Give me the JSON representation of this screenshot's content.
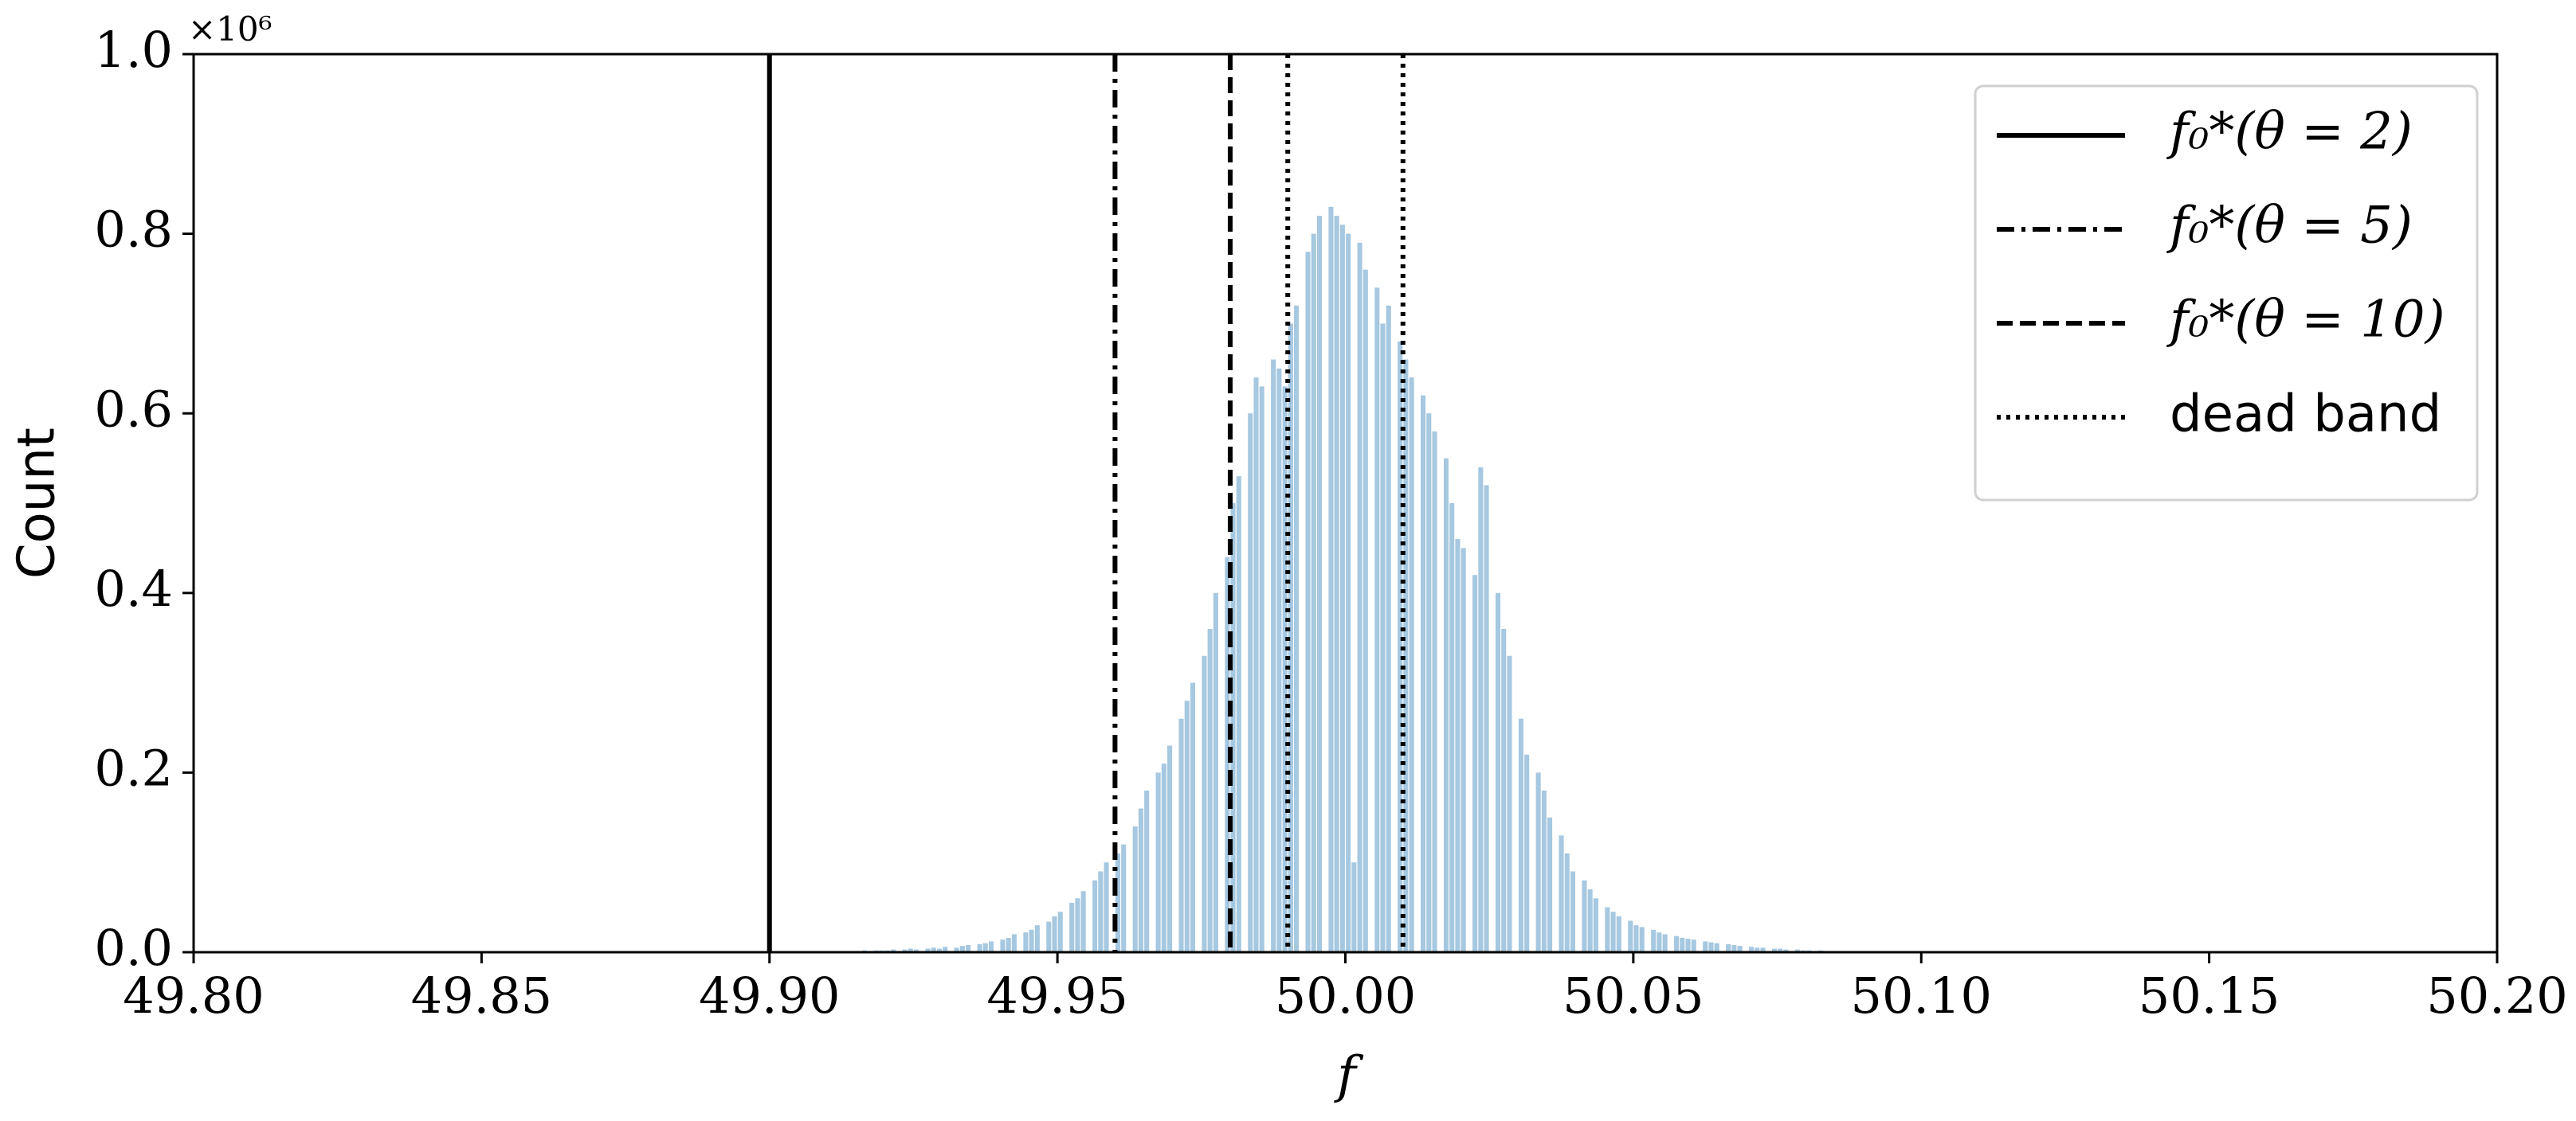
{
  "chart_data": {
    "type": "histogram",
    "xlabel": "f",
    "ylabel": "Count",
    "y_multiplier": "×10⁶",
    "color": "#a6c8e0",
    "xlim": [
      49.8,
      50.2
    ],
    "ylim": [
      0,
      1.0
    ],
    "xticks": [
      {
        "value": 49.8,
        "label": "49.80"
      },
      {
        "value": 49.85,
        "label": "49.85"
      },
      {
        "value": 49.9,
        "label": "49.90"
      },
      {
        "value": 49.95,
        "label": "49.95"
      },
      {
        "value": 50.0,
        "label": "50.00"
      },
      {
        "value": 50.05,
        "label": "50.05"
      },
      {
        "value": 50.1,
        "label": "50.10"
      },
      {
        "value": 50.15,
        "label": "50.15"
      },
      {
        "value": 50.2,
        "label": "50.20"
      }
    ],
    "yticks": [
      {
        "value": 0,
        "label": "0.0"
      },
      0.2,
      0.4,
      0.6,
      0.8,
      {
        "value": 1.0,
        "label": "1.0"
      }
    ],
    "bins": [
      49.91,
      49.911,
      49.912,
      49.913,
      49.914,
      49.915,
      49.916,
      49.917,
      49.918,
      49.919,
      49.92,
      49.921,
      49.922,
      49.923,
      49.924,
      49.925,
      49.926,
      49.927,
      49.928,
      49.929,
      49.93,
      49.931,
      49.932,
      49.933,
      49.934,
      49.935,
      49.936,
      49.937,
      49.938,
      49.939,
      49.94,
      49.941,
      49.942,
      49.943,
      49.944,
      49.945,
      49.946,
      49.947,
      49.948,
      49.949,
      49.95,
      49.951,
      49.952,
      49.953,
      49.954,
      49.955,
      49.956,
      49.957,
      49.958,
      49.959,
      49.96,
      49.961,
      49.962,
      49.963,
      49.964,
      49.965,
      49.966,
      49.967,
      49.968,
      49.969,
      49.97,
      49.971,
      49.972,
      49.973,
      49.974,
      49.975,
      49.976,
      49.977,
      49.978,
      49.979,
      49.98,
      49.981,
      49.982,
      49.983,
      49.984,
      49.985,
      49.986,
      49.987,
      49.988,
      49.989,
      49.99,
      49.991,
      49.992,
      49.993,
      49.994,
      49.995,
      49.996,
      49.997,
      49.998,
      49.999,
      50.0,
      50.001,
      50.002,
      50.003,
      50.004,
      50.005,
      50.006,
      50.007,
      50.008,
      50.009,
      50.01,
      50.011,
      50.012,
      50.013,
      50.014,
      50.015,
      50.016,
      50.017,
      50.018,
      50.019,
      50.02,
      50.021,
      50.022,
      50.023,
      50.024,
      50.025,
      50.026,
      50.027,
      50.028,
      50.029,
      50.03,
      50.031,
      50.032,
      50.033,
      50.034,
      50.035,
      50.036,
      50.037,
      50.038,
      50.039,
      50.04,
      50.041,
      50.042,
      50.043,
      50.044,
      50.045,
      50.046,
      50.047,
      50.048,
      50.049,
      50.05,
      50.051,
      50.052,
      50.053,
      50.054,
      50.055,
      50.056,
      50.057,
      50.058,
      50.059,
      50.06,
      50.061,
      50.062,
      50.063,
      50.064,
      50.065,
      50.066,
      50.067,
      50.068,
      50.069,
      50.07,
      50.071,
      50.072,
      50.073,
      50.074,
      50.075,
      50.076,
      50.077,
      50.078,
      50.079,
      50.08,
      50.081,
      50.082,
      50.083,
      50.084,
      50.085,
      50.086,
      50.087,
      50.088,
      50.089,
      50.09
    ],
    "values": [
      0,
      0.001,
      0,
      0.001,
      0.001,
      0,
      0.002,
      0.001,
      0.002,
      0.002,
      0.002,
      0.003,
      0,
      0.003,
      0.004,
      0.003,
      0,
      0.004,
      0.005,
      0.004,
      0.006,
      0,
      0.005,
      0.007,
      0.008,
      0,
      0.009,
      0.01,
      0.012,
      0,
      0.014,
      0.016,
      0.02,
      0,
      0.022,
      0.025,
      0.03,
      0,
      0.034,
      0.04,
      0.045,
      0,
      0.055,
      0.06,
      0.068,
      0,
      0.08,
      0.09,
      0.1,
      0,
      0.11,
      0.12,
      0,
      0.14,
      0.16,
      0.18,
      0,
      0.2,
      0.21,
      0.23,
      0,
      0.26,
      0.28,
      0.3,
      0,
      0.33,
      0.36,
      0.4,
      0,
      0.44,
      0.5,
      0.53,
      0,
      0.6,
      0.64,
      0.63,
      0,
      0.66,
      0.65,
      0.63,
      0.7,
      0.72,
      0,
      0.78,
      0.8,
      0.82,
      0,
      0.83,
      0.82,
      0.81,
      0.8,
      0.1,
      0.79,
      0.76,
      0,
      0.74,
      0.7,
      0.72,
      0,
      0.68,
      0.66,
      0.64,
      0,
      0.62,
      0.6,
      0.58,
      0,
      0.55,
      0.5,
      0.46,
      0.45,
      0,
      0.42,
      0.54,
      0.52,
      0,
      0.4,
      0.36,
      0.33,
      0,
      0.26,
      0.22,
      0,
      0.2,
      0.18,
      0.15,
      0,
      0.13,
      0.11,
      0.09,
      0,
      0.08,
      0.07,
      0.06,
      0,
      0.05,
      0.045,
      0.04,
      0,
      0.035,
      0.03,
      0.028,
      0,
      0.025,
      0.022,
      0.02,
      0,
      0.018,
      0.016,
      0.015,
      0.014,
      0,
      0.012,
      0.011,
      0.01,
      0,
      0.009,
      0.008,
      0.007,
      0,
      0.006,
      0.005,
      0.005,
      0,
      0.004,
      0.004,
      0.003,
      0,
      0.003,
      0.002,
      0.002,
      0,
      0.002,
      0.001,
      0.001,
      0,
      0.001,
      0.001,
      0,
      0
    ],
    "vlines": [
      {
        "name": "f₀*(θ = 2)",
        "x": [
          49.9
        ],
        "style": "solid"
      },
      {
        "name": "f₀*(θ = 5)",
        "x": [
          49.96
        ],
        "style": "dashdot"
      },
      {
        "name": "f₀*(θ = 10)",
        "x": [
          49.98
        ],
        "style": "dashed"
      },
      {
        "name": "dead band",
        "x": [
          49.99,
          50.01
        ],
        "style": "dotted"
      }
    ],
    "legend": "upper right"
  }
}
